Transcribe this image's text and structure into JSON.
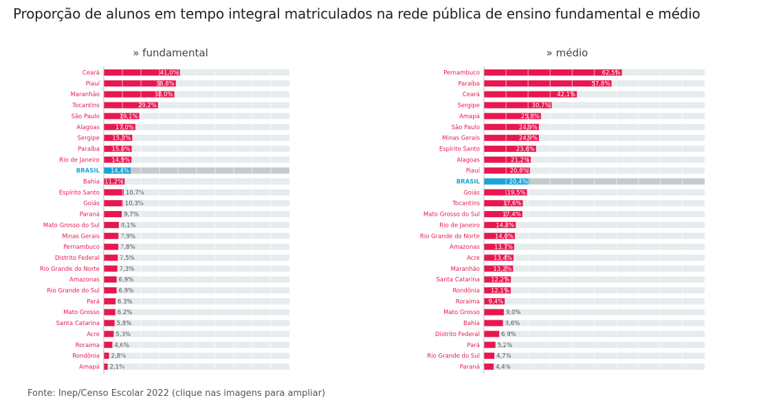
{
  "title": "Proporção de alunos em tempo integral matriculados na rede pública de ensino fundamental e médio",
  "source": "Fonte: Inep/Censo Escolar 2022 (clique nas imagens para ampliar)",
  "colors": {
    "bar": "#e8174f",
    "brasil_bar": "#1aa3d9",
    "track": "#e6ebee",
    "brasil_track": "#c4cacd",
    "label": "#e8174f",
    "brasil_label": "#1aa3d9"
  },
  "chart_data": [
    {
      "type": "bar",
      "orientation": "horizontal",
      "title": "» fundamental",
      "xlim": [
        0,
        100
      ],
      "categories": [
        "Ceará",
        "Piauí",
        "Maranhão",
        "Tocantins",
        "São Paulo",
        "Alagoas",
        "Sergipe",
        "Paraíba",
        "Rio de Janeiro",
        "BRASIL",
        "Bahia",
        "Espírito Santo",
        "Goiás",
        "Paraná",
        "Mato Grosso do Sul",
        "Minas Gerais",
        "Pernambuco",
        "Distrito Federal",
        "Rio Grande do Norte",
        "Amazonas",
        "Rio Grande do Sul",
        "Pará",
        "Mato Grosso",
        "Santa Catarina",
        "Acre",
        "Roraima",
        "Rondônia",
        "Amapá"
      ],
      "values": [
        41.0,
        38.8,
        38.0,
        29.2,
        19.1,
        17.0,
        15.3,
        15.0,
        14.9,
        14.4,
        11.2,
        10.7,
        10.3,
        9.7,
        8.1,
        7.9,
        7.8,
        7.5,
        7.3,
        6.9,
        6.9,
        6.3,
        6.2,
        5.8,
        5.3,
        4.6,
        2.8,
        2.1
      ],
      "value_labels": [
        "41,0%",
        "38,8%",
        "38,0%",
        "29,2%",
        "19,1%",
        "17,0%",
        "15,3%",
        "15,0%",
        "14,9%",
        "14,4%",
        "11,2%",
        "10,7%",
        "10,3%",
        "9,7%",
        "8,1%",
        "7,9%",
        "7,8%",
        "7,5%",
        "7,3%",
        "6,9%",
        "6,9%",
        "6,3%",
        "6,2%",
        "5,8%",
        "5,3%",
        "4,6%",
        "2,8%",
        "2,1%"
      ],
      "highlight": "BRASIL",
      "grid": true
    },
    {
      "type": "bar",
      "orientation": "horizontal",
      "title": "» médio",
      "xlim": [
        0,
        100
      ],
      "categories": [
        "Pernambuco",
        "Paraíba",
        "Ceará",
        "Sergipe",
        "Amapá",
        "São Paulo",
        "Minas Gerais",
        "Espírito Santo",
        "Alagoas",
        "Piauí",
        "BRASIL",
        "Goiás",
        "Tocantins",
        "Mato Grosso do Sul",
        "Rio de Janeiro",
        "Rio Grande do Norte",
        "Amazonas",
        "Acre",
        "Maranhão",
        "Santa Catarina",
        "Rondônia",
        "Roraima",
        "Mato Grosso",
        "Bahia",
        "Distrito Federal",
        "Pará",
        "Rio Grande do Sul",
        "Paraná"
      ],
      "values": [
        62.5,
        57.8,
        42.1,
        30.7,
        25.8,
        24.9,
        24.9,
        23.6,
        21.2,
        20.8,
        20.4,
        19.5,
        17.6,
        17.4,
        14.4,
        14.0,
        13.7,
        13.4,
        13.2,
        12.2,
        12.1,
        9.4,
        9.0,
        8.6,
        6.9,
        5.2,
        4.7,
        4.4
      ],
      "value_labels": [
        "62,5%",
        "57,8%",
        "42,1%",
        "30,7%",
        "25,8%",
        "24,9%",
        "24,9%",
        "23,6%",
        "21,2%",
        "20,8%",
        "20,4%",
        "19,5%",
        "17,6%",
        "17,4%",
        "14,4%",
        "14,0%",
        "13,7%",
        "13,4%",
        "13,2%",
        "12,2%",
        "12,1%",
        "9,4%",
        "9,0%",
        "8,6%",
        "6,9%",
        "5,2%",
        "4,7%",
        "4,4%"
      ],
      "highlight": "BRASIL",
      "grid": true
    }
  ]
}
